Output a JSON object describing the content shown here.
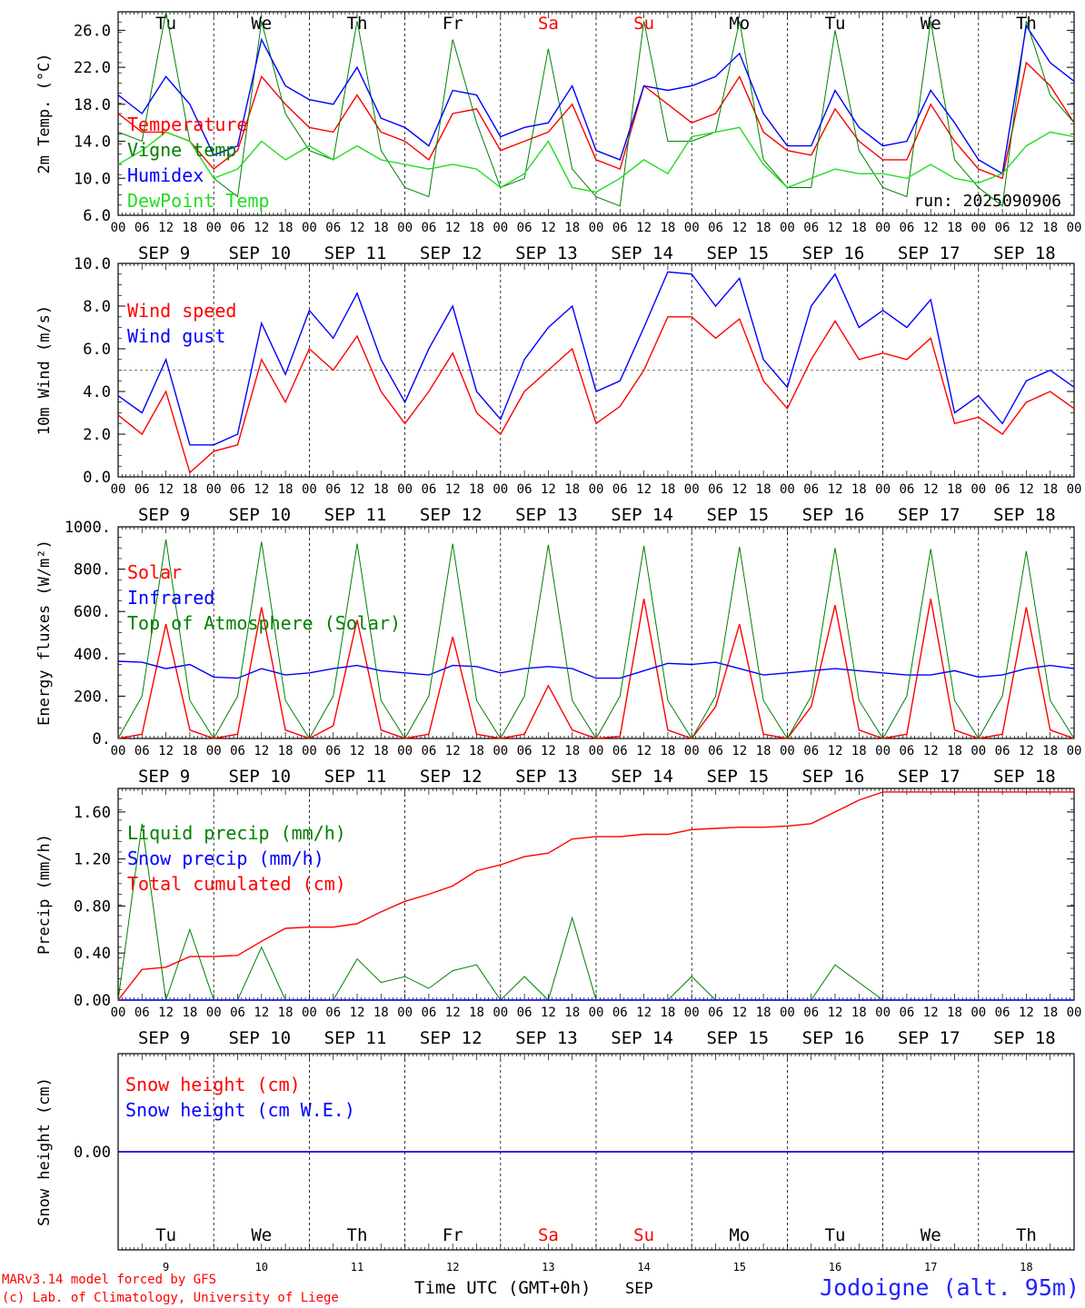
{
  "days": [
    {
      "abbr": "Tu",
      "date": "SEP  9",
      "num": "9",
      "weekend": false
    },
    {
      "abbr": "We",
      "date": "SEP 10",
      "num": "10",
      "weekend": false
    },
    {
      "abbr": "Th",
      "date": "SEP 11",
      "num": "11",
      "weekend": false
    },
    {
      "abbr": "Fr",
      "date": "SEP 12",
      "num": "12",
      "weekend": false
    },
    {
      "abbr": "Sa",
      "date": "SEP 13",
      "num": "13",
      "weekend": true
    },
    {
      "abbr": "Su",
      "date": "SEP 14",
      "num": "14",
      "weekend": true
    },
    {
      "abbr": "Mo",
      "date": "SEP 15",
      "num": "15",
      "weekend": false
    },
    {
      "abbr": "Tu",
      "date": "SEP 16",
      "num": "16",
      "weekend": false
    },
    {
      "abbr": "We",
      "date": "SEP 17",
      "num": "17",
      "weekend": false
    },
    {
      "abbr": "Th",
      "date": "SEP 18",
      "num": "18",
      "weekend": false
    }
  ],
  "hour_ticks": [
    "00",
    "06",
    "12",
    "18"
  ],
  "final_tick": "00",
  "run_label": "run: 2025090906",
  "footer": {
    "model": "MARv3.14 model forced by GFS",
    "lab": "(c) Lab. of Climatology, University of Liege",
    "time_axis": "Time UTC (GMT+0h)",
    "month": "SEP",
    "station": "Jodoigne (alt. 95m)"
  },
  "colors": {
    "red": "#ff0000",
    "green": "#008000",
    "blue": "#0000ff",
    "lightgreen": "#22dd22",
    "weekend": "#ff0000",
    "station": "#2222ff"
  },
  "chart_data": [
    {
      "type": "line",
      "ylabel": "2m Temp. (°C)",
      "ylim": [
        6.0,
        28.0
      ],
      "yticks": [
        "6.0",
        "10.0",
        "14.0",
        "18.0",
        "22.0",
        "26.0"
      ],
      "x_hours": [
        0,
        6,
        12,
        18,
        24,
        30,
        36,
        42,
        48,
        54,
        60,
        66,
        72,
        78,
        84,
        90,
        96,
        102,
        108,
        114,
        120,
        126,
        132,
        138,
        144,
        150,
        156,
        162,
        168,
        174,
        180,
        186,
        192,
        198,
        204,
        210,
        216,
        222,
        228,
        234,
        240
      ],
      "series": [
        {
          "name": "Temperature",
          "color": "red",
          "values": [
            17.0,
            15.0,
            15.0,
            14.0,
            11.0,
            13.0,
            21.0,
            18.0,
            15.5,
            15.0,
            19.0,
            15.0,
            14.0,
            12.0,
            17.0,
            17.5,
            13.0,
            14.0,
            15.0,
            18.0,
            12.0,
            11.0,
            20.0,
            18.0,
            16.0,
            17.0,
            21.0,
            15.0,
            13.0,
            12.5,
            17.5,
            14.0,
            12.0,
            12.0,
            18.0,
            14.0,
            11.0,
            10.0,
            22.5,
            20.0,
            16.0
          ]
        },
        {
          "name": "Vigne temp",
          "color": "green",
          "values": [
            15.0,
            14.0,
            28.0,
            14.0,
            10.0,
            8.0,
            27.0,
            17.0,
            13.0,
            12.0,
            27.0,
            13.0,
            9.0,
            8.0,
            25.0,
            16.0,
            9.0,
            10.0,
            24.0,
            11.0,
            8.0,
            7.0,
            27.0,
            14.0,
            14.0,
            15.0,
            27.0,
            12.0,
            9.0,
            9.0,
            26.0,
            13.0,
            9.0,
            8.0,
            27.0,
            12.0,
            9.0,
            7.0,
            27.0,
            19.0,
            16.0
          ]
        },
        {
          "name": "Humidex",
          "color": "blue",
          "values": [
            19.0,
            17.0,
            21.0,
            18.0,
            12.5,
            13.5,
            25.0,
            20.0,
            18.5,
            18.0,
            22.0,
            16.5,
            15.5,
            13.5,
            19.5,
            19.0,
            14.5,
            15.5,
            16.0,
            20.0,
            13.0,
            12.0,
            20.0,
            19.5,
            20.0,
            21.0,
            23.5,
            17.0,
            13.5,
            13.5,
            19.5,
            15.5,
            13.5,
            14.0,
            19.5,
            16.0,
            12.0,
            10.5,
            26.5,
            22.5,
            20.5
          ]
        },
        {
          "name": "DewPoint Temp",
          "color": "lightgreen",
          "values": [
            11.5,
            13.0,
            15.0,
            14.0,
            10.0,
            11.0,
            14.0,
            12.0,
            13.5,
            12.0,
            13.5,
            12.0,
            11.5,
            11.0,
            11.5,
            11.0,
            9.0,
            10.5,
            14.0,
            9.0,
            8.5,
            10.0,
            12.0,
            10.5,
            14.5,
            15.0,
            15.5,
            11.5,
            9.0,
            10.0,
            11.0,
            10.5,
            10.5,
            10.0,
            11.5,
            10.0,
            9.5,
            10.5,
            13.5,
            15.0,
            14.5
          ]
        }
      ]
    },
    {
      "type": "line",
      "ylabel": "10m Wind (m/s)",
      "ylim": [
        0.0,
        10.0
      ],
      "yticks": [
        "0.0",
        "2.0",
        "4.0",
        "6.0",
        "8.0",
        "10.0"
      ],
      "reference_line": 5.0,
      "x_hours": [
        0,
        6,
        12,
        18,
        24,
        30,
        36,
        42,
        48,
        54,
        60,
        66,
        72,
        78,
        84,
        90,
        96,
        102,
        108,
        114,
        120,
        126,
        132,
        138,
        144,
        150,
        156,
        162,
        168,
        174,
        180,
        186,
        192,
        198,
        204,
        210,
        216,
        222,
        228,
        234,
        240
      ],
      "series": [
        {
          "name": "Wind speed",
          "color": "red",
          "values": [
            2.9,
            2.0,
            4.0,
            0.2,
            1.2,
            1.5,
            5.5,
            3.5,
            6.0,
            5.0,
            6.6,
            4.0,
            2.5,
            4.0,
            5.8,
            3.0,
            2.0,
            4.0,
            5.0,
            6.0,
            2.5,
            3.3,
            5.0,
            7.5,
            7.5,
            6.5,
            7.4,
            4.5,
            3.2,
            5.5,
            7.3,
            5.5,
            5.8,
            5.5,
            6.5,
            2.5,
            2.8,
            2.0,
            3.5,
            4.0,
            3.2
          ]
        },
        {
          "name": "Wind gust",
          "color": "blue",
          "values": [
            3.8,
            3.0,
            5.5,
            1.5,
            1.5,
            2.0,
            7.2,
            4.8,
            7.8,
            6.5,
            8.6,
            5.5,
            3.5,
            6.0,
            8.0,
            4.0,
            2.7,
            5.5,
            7.0,
            8.0,
            4.0,
            4.5,
            7.0,
            9.6,
            9.5,
            8.0,
            9.3,
            5.5,
            4.2,
            8.0,
            9.5,
            7.0,
            7.8,
            7.0,
            8.3,
            3.0,
            3.8,
            2.5,
            4.5,
            5.0,
            4.2
          ]
        }
      ]
    },
    {
      "type": "line",
      "ylabel": "Energy fluxes (W/m²)",
      "ylim": [
        0,
        1000
      ],
      "yticks": [
        "0.",
        "200.",
        "400.",
        "600.",
        "800.",
        "1000."
      ],
      "x_hours": [
        0,
        6,
        12,
        18,
        24,
        30,
        36,
        42,
        48,
        54,
        60,
        66,
        72,
        78,
        84,
        90,
        96,
        102,
        108,
        114,
        120,
        126,
        132,
        138,
        144,
        150,
        156,
        162,
        168,
        174,
        180,
        186,
        192,
        198,
        204,
        210,
        216,
        222,
        228,
        234,
        240
      ],
      "series": [
        {
          "name": "Solar",
          "color": "red",
          "values": [
            0,
            20,
            540,
            40,
            0,
            20,
            620,
            40,
            0,
            60,
            560,
            40,
            0,
            20,
            480,
            20,
            0,
            20,
            250,
            40,
            0,
            10,
            660,
            40,
            0,
            150,
            540,
            20,
            0,
            150,
            630,
            40,
            0,
            20,
            660,
            40,
            0,
            20,
            620,
            40,
            0
          ]
        },
        {
          "name": "Infrared",
          "color": "blue",
          "values": [
            365,
            360,
            330,
            350,
            290,
            285,
            330,
            300,
            310,
            330,
            345,
            320,
            310,
            300,
            345,
            340,
            310,
            330,
            340,
            330,
            285,
            285,
            320,
            355,
            350,
            360,
            330,
            300,
            310,
            320,
            330,
            320,
            310,
            300,
            300,
            320,
            290,
            300,
            330,
            345,
            330
          ]
        },
        {
          "name": "Top of Atmosphere (Solar)",
          "color": "green",
          "values": [
            0,
            200,
            940,
            180,
            0,
            200,
            930,
            180,
            0,
            200,
            920,
            180,
            0,
            200,
            920,
            180,
            0,
            200,
            915,
            180,
            0,
            200,
            910,
            180,
            0,
            200,
            905,
            180,
            0,
            200,
            900,
            180,
            0,
            200,
            895,
            180,
            0,
            200,
            885,
            180,
            0
          ]
        }
      ]
    },
    {
      "type": "line",
      "ylabel": "Precip (mm/h)",
      "ylim": [
        0.0,
        1.8
      ],
      "yticks": [
        "0.00",
        "0.40",
        "0.80",
        "1.20",
        "1.60"
      ],
      "x_hours": [
        0,
        6,
        12,
        18,
        24,
        30,
        36,
        42,
        48,
        54,
        60,
        66,
        72,
        78,
        84,
        90,
        96,
        102,
        108,
        114,
        120,
        126,
        132,
        138,
        144,
        150,
        156,
        162,
        168,
        174,
        180,
        186,
        192,
        198,
        204,
        210,
        216,
        222,
        228,
        234,
        240
      ],
      "series": [
        {
          "name": "Liquid precip (mm/h)",
          "color": "green",
          "values": [
            0.0,
            1.5,
            0.0,
            0.6,
            0.0,
            0.0,
            0.45,
            0.0,
            0.0,
            0.0,
            0.35,
            0.15,
            0.2,
            0.1,
            0.25,
            0.3,
            0.0,
            0.2,
            0.0,
            0.7,
            0.0,
            0.0,
            0.0,
            0.0,
            0.2,
            0.0,
            0.0,
            0.0,
            0.0,
            0.0,
            0.3,
            0.15,
            0.0,
            0.0,
            0.0,
            0.0,
            0.0,
            0.0,
            0.0,
            0.0,
            0.0
          ]
        },
        {
          "name": "Snow precip (mm/h)",
          "color": "blue",
          "values": [
            0.0,
            0.0,
            0.0,
            0.0,
            0.0,
            0.0,
            0.0,
            0.0,
            0.0,
            0.0,
            0.0,
            0.0,
            0.0,
            0.0,
            0.0,
            0.0,
            0.0,
            0.0,
            0.0,
            0.0,
            0.0,
            0.0,
            0.0,
            0.0,
            0.0,
            0.0,
            0.0,
            0.0,
            0.0,
            0.0,
            0.0,
            0.0,
            0.0,
            0.0,
            0.0,
            0.0,
            0.0,
            0.0,
            0.0,
            0.0,
            0.0
          ]
        },
        {
          "name": "Total cumulated (cm)",
          "color": "red",
          "values": [
            0.0,
            0.26,
            0.28,
            0.37,
            0.37,
            0.38,
            0.5,
            0.61,
            0.62,
            0.62,
            0.65,
            0.75,
            0.84,
            0.9,
            0.97,
            1.1,
            1.15,
            1.22,
            1.25,
            1.37,
            1.39,
            1.39,
            1.41,
            1.41,
            1.45,
            1.46,
            1.47,
            1.47,
            1.48,
            1.5,
            1.6,
            1.7,
            1.77,
            1.77,
            1.77,
            1.77,
            1.77,
            1.77,
            1.77,
            1.77,
            1.77
          ]
        }
      ]
    },
    {
      "type": "line",
      "ylabel": "Snow height (cm)",
      "ylim": [
        -1.0,
        1.0
      ],
      "yticks": [
        "0.00"
      ],
      "x_hours": [
        0,
        240
      ],
      "series": [
        {
          "name": "Snow height (cm)",
          "color": "red",
          "values": [
            0.0,
            0.0
          ]
        },
        {
          "name": "Snow height (cm W.E.)",
          "color": "blue",
          "values": [
            0.0,
            0.0
          ]
        }
      ]
    }
  ]
}
